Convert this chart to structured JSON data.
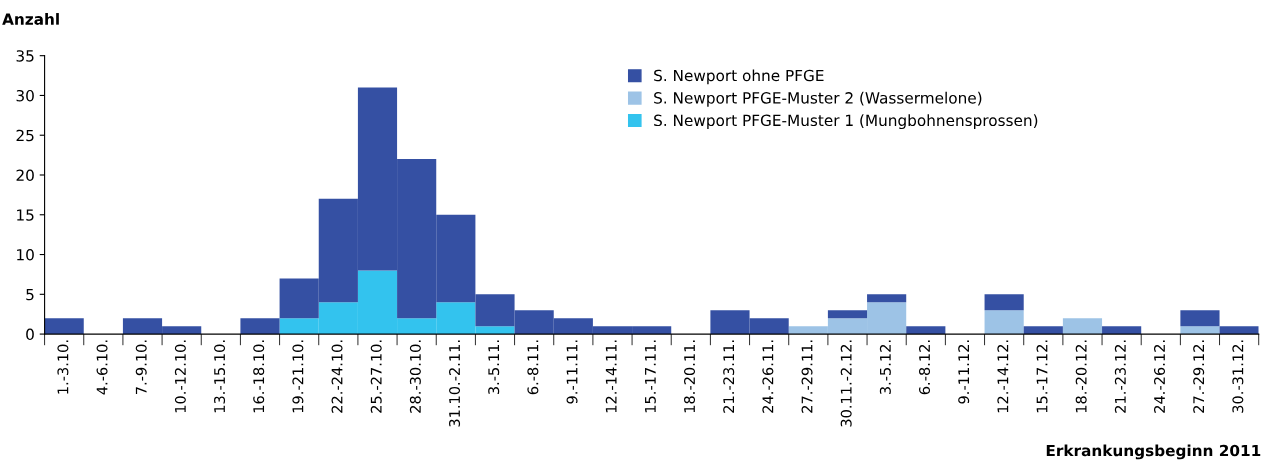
{
  "chart_data": {
    "type": "bar",
    "stacked": true,
    "ylabel": "Anzahl",
    "xlabel": "Erkrankungsbeginn 2011",
    "categories": [
      "1.-3.10.",
      "4.-6.10.",
      "7.-9.10.",
      "10.-12.10.",
      "13.-15.10.",
      "16.-18.10.",
      "19.-21.10.",
      "22.-24.10.",
      "25.-27.10.",
      "28.-30.10.",
      "31.10.-2.11.",
      "3.-5.11.",
      "6.-8.11.",
      "9.-11.11.",
      "12.-14.11.",
      "15.-17.11.",
      "18.-20.11.",
      "21.-23.11.",
      "24.-26.11.",
      "27.-29.11.",
      "30.11.-2.12.",
      "3.-5.12.",
      "6.-8.12.",
      "9.-11.12.",
      "12.-14.12.",
      "15.-17.12.",
      "18.-20.12.",
      "21.-23.12.",
      "24.-26.12.",
      "27.-29.12.",
      "30.-31.12."
    ],
    "series": [
      {
        "name": "S. Newport PFGE-Muster 1 (Mungbohnensprossen)",
        "color": "#33c3ee",
        "values": [
          0,
          0,
          0,
          0,
          0,
          0,
          2,
          4,
          8,
          2,
          4,
          1,
          0,
          0,
          0,
          0,
          0,
          0,
          0,
          0,
          0,
          0,
          0,
          0,
          0,
          0,
          0,
          0,
          0,
          0,
          0
        ]
      },
      {
        "name": "S. Newport PFGE-Muster 2 (Wassermelone)",
        "color": "#9dc3e6",
        "values": [
          0,
          0,
          0,
          0,
          0,
          0,
          0,
          0,
          0,
          0,
          0,
          0,
          0,
          0,
          0,
          0,
          0,
          0,
          0,
          1,
          2,
          4,
          0,
          0,
          3,
          0,
          2,
          0,
          0,
          1,
          0
        ]
      },
      {
        "name": "S. Newport ohne PFGE",
        "color": "#3550a3",
        "values": [
          2,
          0,
          2,
          1,
          0,
          2,
          5,
          13,
          23,
          20,
          11,
          4,
          3,
          2,
          1,
          1,
          0,
          3,
          2,
          0,
          1,
          1,
          1,
          0,
          2,
          1,
          0,
          1,
          0,
          2,
          1
        ]
      }
    ],
    "ylim": [
      0,
      35
    ],
    "yticks": [
      0,
      5,
      10,
      15,
      20,
      25,
      30,
      35
    ],
    "grid": false,
    "legend": "top right"
  }
}
